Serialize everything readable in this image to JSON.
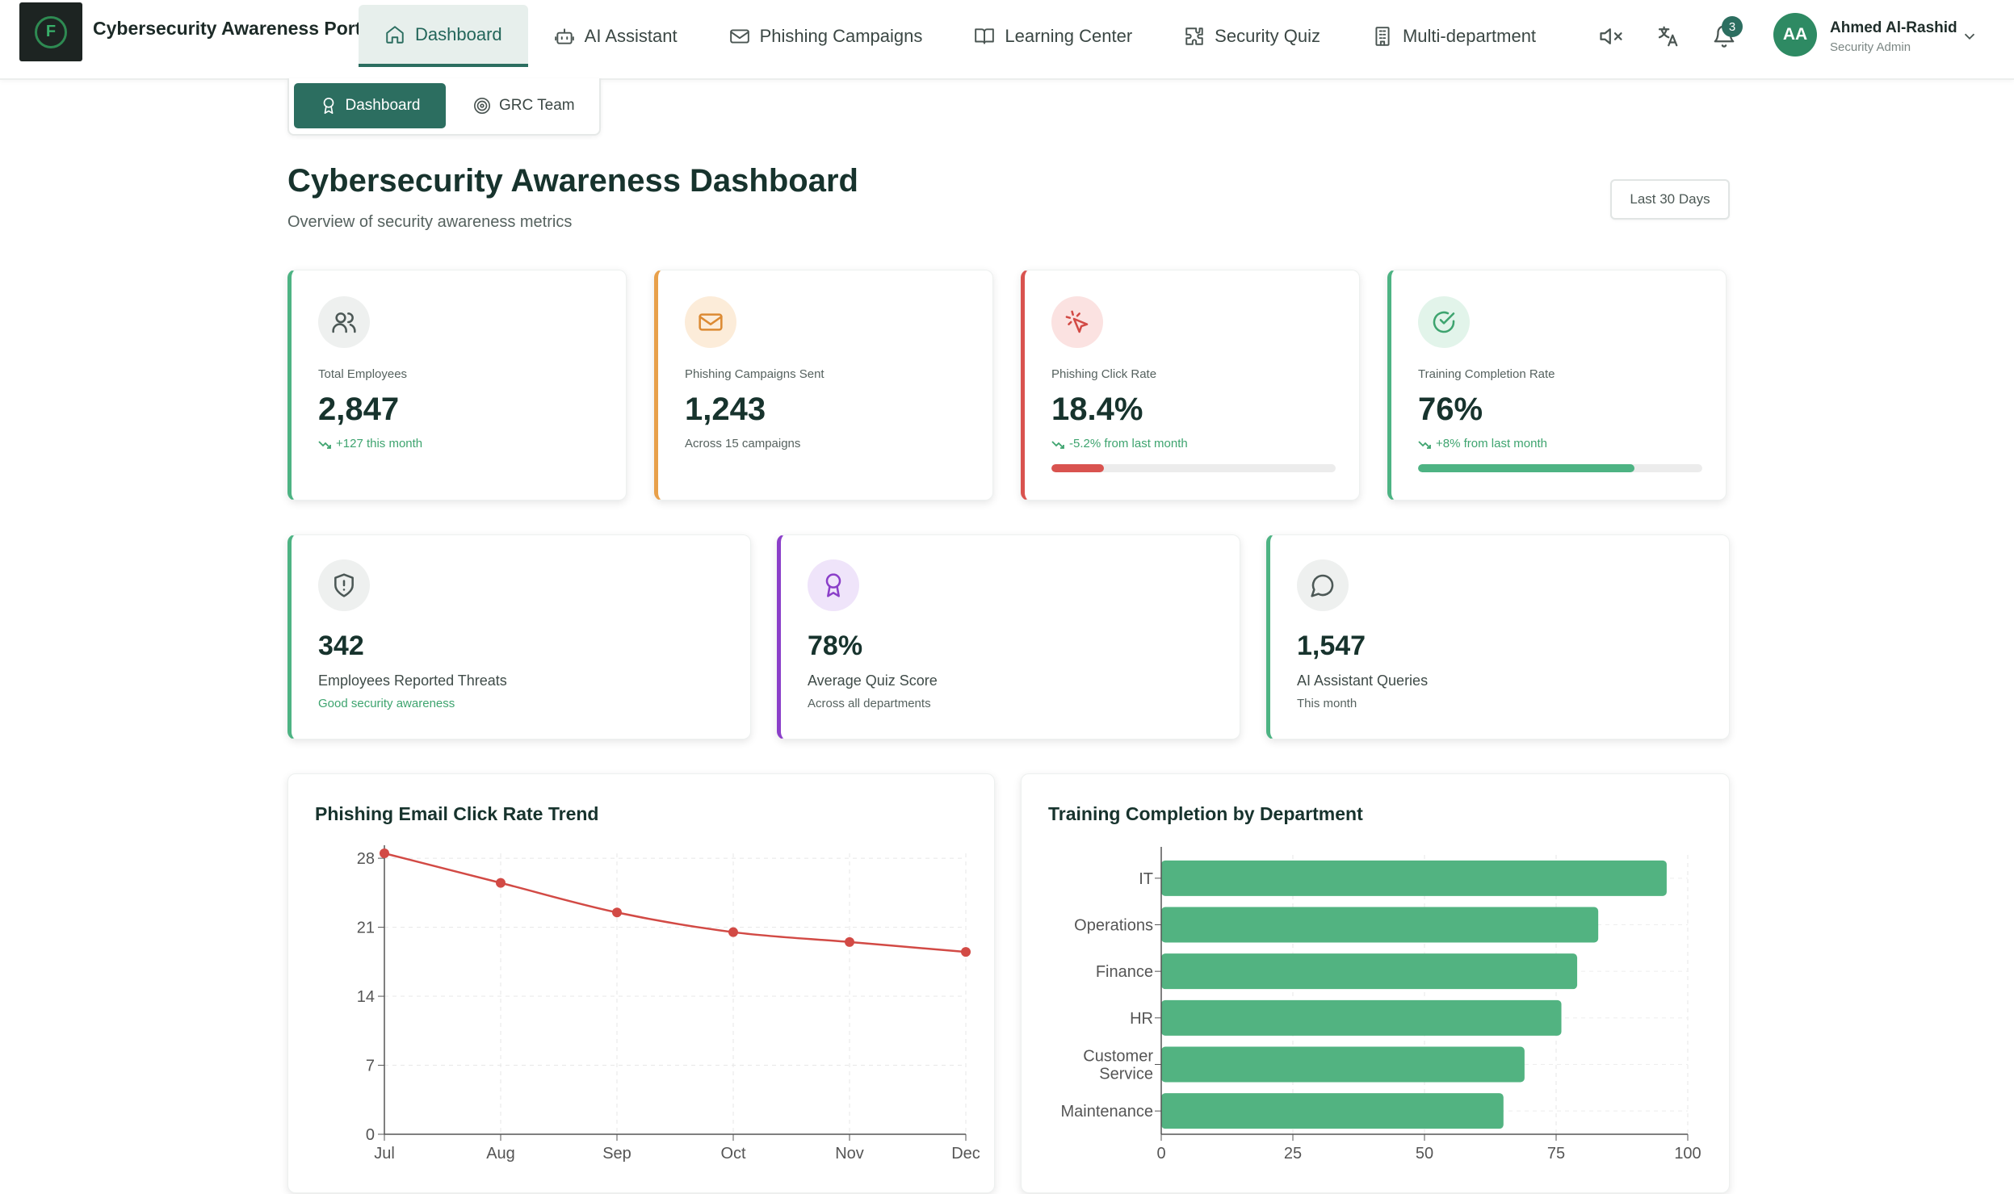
{
  "app": {
    "title": "Cybersecurity Awareness Portal",
    "logo_letter": "F"
  },
  "nav": [
    {
      "label": "Dashboard",
      "icon": "home-icon",
      "active": true
    },
    {
      "label": "AI Assistant",
      "icon": "bot-icon",
      "active": false
    },
    {
      "label": "Phishing Campaigns",
      "icon": "mail-icon",
      "active": false
    },
    {
      "label": "Learning Center",
      "icon": "book-icon",
      "active": false
    },
    {
      "label": "Security Quiz",
      "icon": "puzzle-icon",
      "active": false
    },
    {
      "label": "Multi-department",
      "icon": "building-icon",
      "active": false
    }
  ],
  "toolbar": {
    "mute_icon": "volume-mute-icon",
    "language_icon": "translate-icon",
    "bell_icon": "bell-icon",
    "notification_count": "3"
  },
  "user": {
    "initials": "AA",
    "name": "Ahmed Al-Rashid",
    "role": "Security Admin"
  },
  "subtabs": [
    {
      "label": "Dashboard",
      "icon": "award-icon",
      "active": true
    },
    {
      "label": "GRC Team",
      "icon": "target-icon",
      "active": false
    }
  ],
  "header": {
    "title": "Cybersecurity Awareness Dashboard",
    "subtitle": "Overview of security awareness metrics",
    "range_label": "Last 30 Days"
  },
  "colors": {
    "primary": "#2c6e60",
    "green": "#4db383",
    "orange": "#e8a04a",
    "red": "#d9534f",
    "purple": "#8b3fc9"
  },
  "stats": [
    {
      "label": "Total Employees",
      "value": "2,847",
      "note": "+127 this month",
      "icon": "users-icon",
      "progress": null
    },
    {
      "label": "Phishing Campaigns Sent",
      "value": "1,243",
      "note": "Across 15 campaigns",
      "icon": "mail-icon",
      "progress": null
    },
    {
      "label": "Phishing Click Rate",
      "value": "18.4%",
      "note": "-5.2% from last month",
      "icon": "cursor-click-icon",
      "progress": 18.4
    },
    {
      "label": "Training Completion Rate",
      "value": "76%",
      "note": "+8% from last month",
      "icon": "check-circle-icon",
      "progress": 76
    }
  ],
  "stats2": [
    {
      "label": "Employees Reported Threats",
      "value": "342",
      "note": "Good security awareness",
      "icon": "shield-alert-icon"
    },
    {
      "label": "Average Quiz Score",
      "value": "78%",
      "note": "Across all departments",
      "icon": "award-icon"
    },
    {
      "label": "AI Assistant Queries",
      "value": "1,547",
      "note": "This month",
      "icon": "message-circle-icon"
    }
  ],
  "chart_data": [
    {
      "type": "line",
      "title": "Phishing Email Click Rate Trend",
      "categories": [
        "Jul",
        "Aug",
        "Sep",
        "Oct",
        "Nov",
        "Dec"
      ],
      "values": [
        28.5,
        25.5,
        22.5,
        20.5,
        19.5,
        18.5
      ],
      "y_ticks": [
        "0",
        "7",
        "14",
        "21",
        "28"
      ],
      "ylim": [
        0,
        28.5
      ],
      "grid": true,
      "color": "#d24a45"
    },
    {
      "type": "bar",
      "orientation": "horizontal",
      "title": "Training Completion by Department",
      "categories": [
        "IT",
        "Operations",
        "Finance",
        "HR",
        "Customer Service",
        "Maintenance"
      ],
      "values": [
        96,
        83,
        79,
        76,
        69,
        65
      ],
      "x_ticks": [
        "0",
        "25",
        "50",
        "75",
        "100"
      ],
      "xlim": [
        0,
        100
      ],
      "grid": true,
      "color": "#52b381"
    }
  ]
}
